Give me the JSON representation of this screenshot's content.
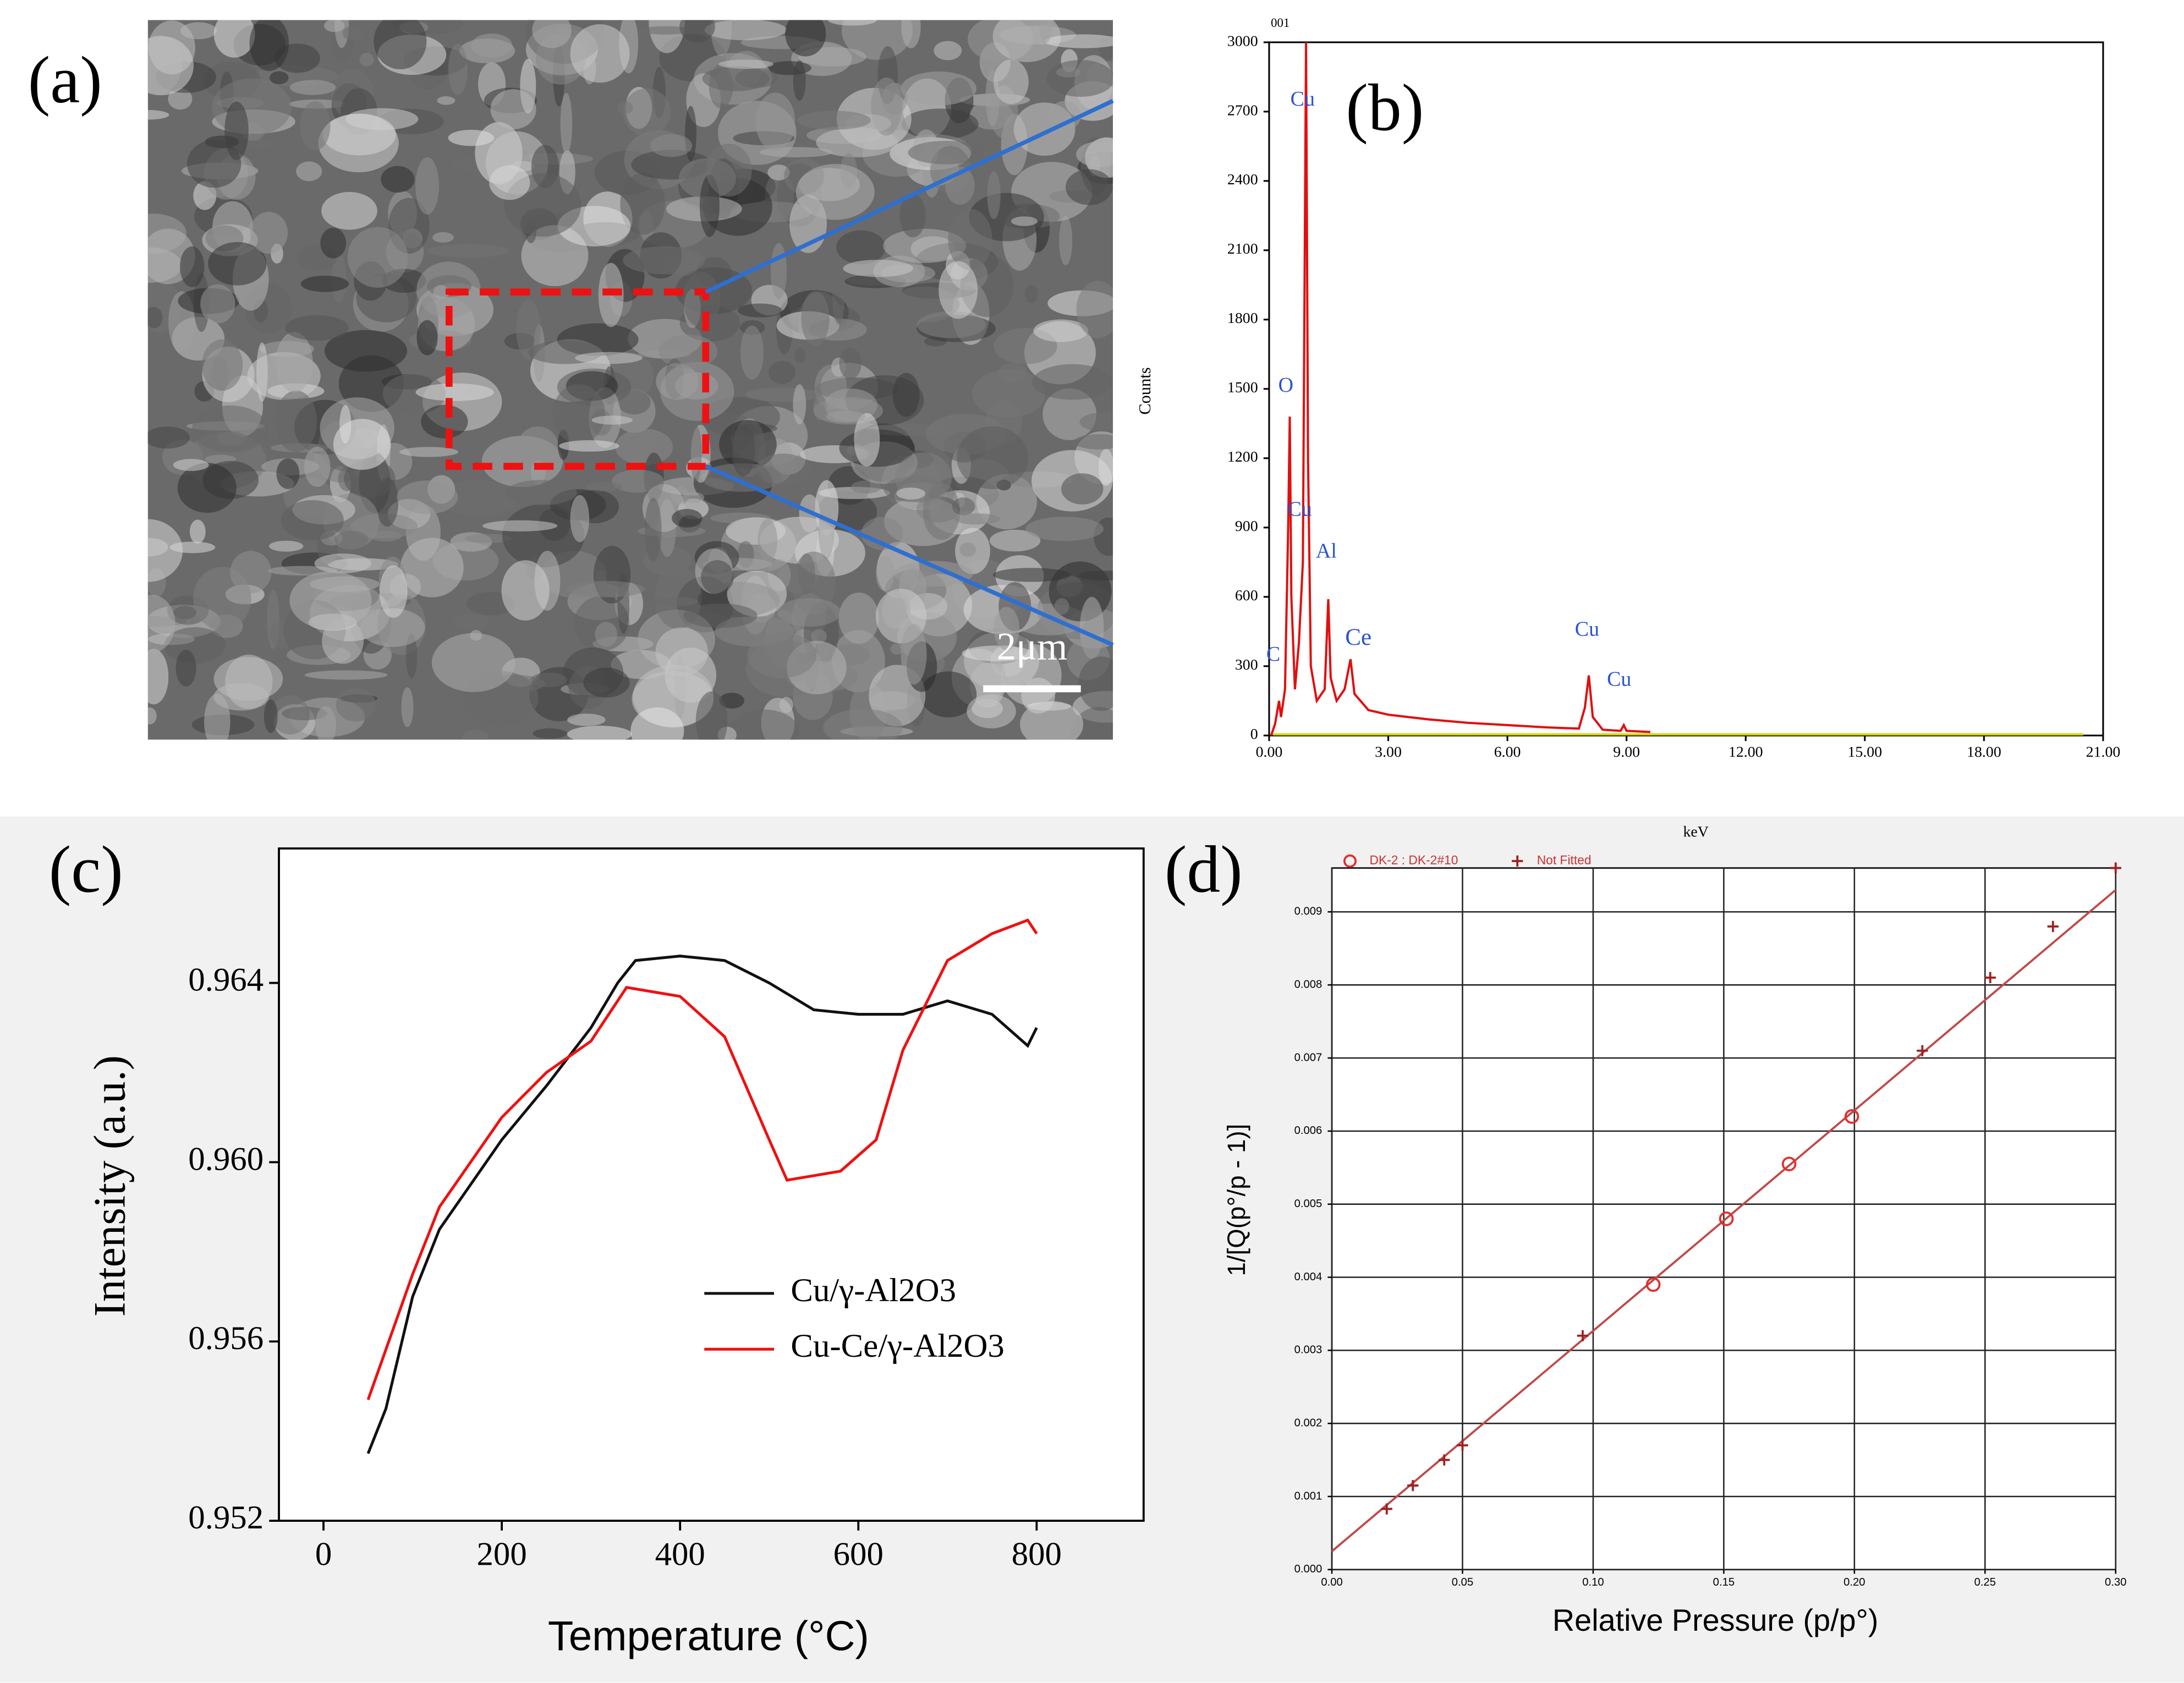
{
  "image_a": {
    "label": "(a)",
    "scale_bar": "2μm"
  },
  "chart_data": [
    {
      "type": "line",
      "label": "(b)",
      "xlabel": "keV",
      "ylabel": "Counts",
      "annotations": [
        "001",
        "Cu",
        "O",
        "Cu",
        "Al",
        "C",
        "Ce",
        "Cu",
        "Cu"
      ],
      "xlim": [
        0,
        21
      ],
      "xticks": [
        {
          "value": 0,
          "label": "0.00"
        },
        {
          "value": 3,
          "label": "3.00"
        },
        {
          "value": 6,
          "label": "6.00"
        },
        {
          "value": 9,
          "label": "9.00"
        },
        {
          "value": 12,
          "label": "12.00"
        },
        {
          "value": 15,
          "label": "15.00"
        },
        {
          "value": 18,
          "label": "18.00"
        },
        {
          "value": 21,
          "label": "21.00"
        }
      ],
      "ylim": [
        0,
        3000
      ],
      "yticks": [
        0,
        300,
        600,
        900,
        1200,
        1500,
        1800,
        2100,
        2400,
        2700,
        3000
      ],
      "series": [
        {
          "color": "#e01010",
          "x": [
            0.05,
            0.15,
            0.25,
            0.3,
            0.4,
            0.48,
            0.52,
            0.56,
            0.65,
            0.75,
            0.85,
            0.93,
            0.98,
            1.05,
            1.2,
            1.4,
            1.49,
            1.55,
            1.7,
            1.9,
            2.05,
            2.15,
            2.5,
            3.0,
            4.0,
            5.0,
            6.0,
            7.0,
            7.8,
            7.95,
            8.05,
            8.15,
            8.4,
            8.85,
            8.93,
            9.0,
            9.6
          ],
          "values": [
            0,
            50,
            150,
            80,
            200,
            900,
            1380,
            600,
            200,
            400,
            750,
            3000,
            1200,
            300,
            150,
            200,
            590,
            250,
            150,
            200,
            330,
            180,
            110,
            90,
            70,
            55,
            45,
            35,
            30,
            120,
            260,
            80,
            25,
            20,
            45,
            20,
            15
          ]
        },
        {
          "color": "#d8d800",
          "x": [
            0.1,
            20.5
          ],
          "values": [
            5,
            5
          ]
        }
      ]
    },
    {
      "type": "line",
      "label": "(c)",
      "xlabel": "Temperature  (°C)",
      "ylabel": "Intensity (a.u.)",
      "xlim": [
        -50,
        920
      ],
      "xticks": [
        0,
        200,
        400,
        600,
        800
      ],
      "ylim": [
        0.952,
        0.967
      ],
      "yticks": [
        0.952,
        0.956,
        {
          "value": 0.96,
          "label": "0.960"
        },
        0.964
      ],
      "series": [
        {
          "name": "Cu/γ-Al2O3",
          "color": "#111111",
          "x": [
            50,
            70,
            100,
            130,
            200,
            250,
            300,
            330,
            350,
            400,
            450,
            500,
            550,
            600,
            650,
            700,
            750,
            790,
            800
          ],
          "values": [
            0.9535,
            0.9545,
            0.957,
            0.9585,
            0.9605,
            0.9617,
            0.963,
            0.964,
            0.9645,
            0.9646,
            0.9645,
            0.964,
            0.9634,
            0.9633,
            0.9633,
            0.9636,
            0.9633,
            0.9626,
            0.963
          ]
        },
        {
          "name": "Cu-Ce/γ-Al2O3",
          "color": "#ee1111",
          "x": [
            50,
            100,
            130,
            200,
            250,
            300,
            340,
            400,
            450,
            500,
            520,
            550,
            580,
            620,
            650,
            700,
            750,
            790,
            800
          ],
          "values": [
            0.9547,
            0.9575,
            0.959,
            0.961,
            0.962,
            0.9627,
            0.9639,
            0.9637,
            0.9628,
            0.9605,
            0.9596,
            0.9597,
            0.9598,
            0.9605,
            0.9625,
            0.9645,
            0.9651,
            0.9654,
            0.9651
          ]
        }
      ]
    },
    {
      "type": "scatter",
      "label": "(d)",
      "xlabel": "Relative Pressure (p/p°)",
      "ylabel": "1/[Q(p°/p - 1)]",
      "grid": true,
      "xlim": [
        0,
        0.3
      ],
      "xticks": [
        {
          "value": 0,
          "label": "0.00"
        },
        {
          "value": 0.05,
          "label": "0.05"
        },
        {
          "value": 0.1,
          "label": "0.10"
        },
        {
          "value": 0.15,
          "label": "0.15"
        },
        {
          "value": 0.2,
          "label": "0.20"
        },
        {
          "value": 0.25,
          "label": "0.25"
        },
        {
          "value": 0.3,
          "label": "0.30"
        }
      ],
      "ylim": [
        0,
        0.0096
      ],
      "yticks": [
        {
          "value": 0,
          "label": "0.000"
        },
        0.001,
        0.002,
        0.003,
        0.004,
        0.005,
        0.006,
        0.007,
        0.008,
        0.009
      ],
      "series": [
        {
          "name": "DK-2 : DK-2#10",
          "marker": "circle",
          "color": "#e03030",
          "x": [
            0.123,
            0.151,
            0.175,
            0.199
          ],
          "values": [
            0.0039,
            0.0048,
            0.00555,
            0.0062
          ]
        },
        {
          "name": "Not Fitted",
          "marker": "plus",
          "color": "#a02020",
          "x": [
            0.021,
            0.031,
            0.043,
            0.05,
            0.096,
            0.226,
            0.252,
            0.276,
            0.3
          ],
          "values": [
            0.00083,
            0.00115,
            0.0015,
            0.0017,
            0.0032,
            0.0071,
            0.0081,
            0.0088,
            0.0096
          ]
        }
      ],
      "fit": {
        "color": "#c04848",
        "x": [
          0,
          0.3
        ],
        "values": [
          0.00025,
          0.0093
        ]
      }
    }
  ]
}
